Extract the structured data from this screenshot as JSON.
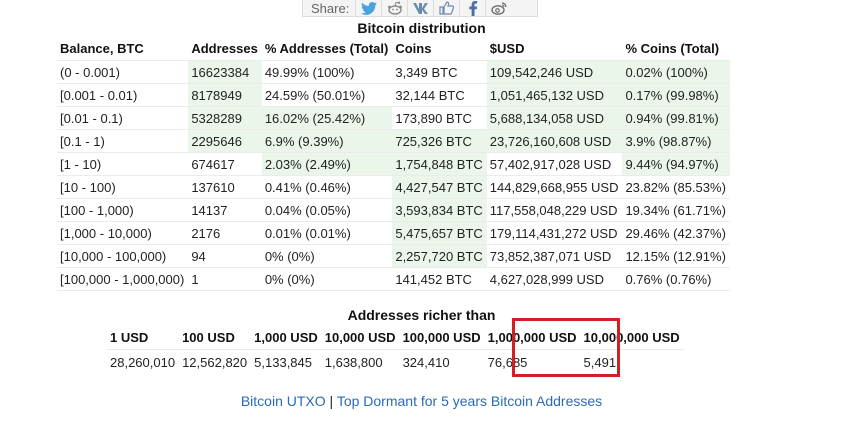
{
  "share": {
    "label": "Share:",
    "icons": [
      "twitter-icon",
      "reddit-icon",
      "vk-icon",
      "like-icon",
      "facebook-icon",
      "weibo-icon"
    ]
  },
  "distribution": {
    "title": "Bitcoin distribution",
    "headers": [
      "Balance, BTC",
      "Addresses",
      "% Addresses (Total)",
      "Coins",
      "$USD",
      "% Coins (Total)"
    ],
    "rows": [
      [
        "(0 - 0.001)",
        "16623384",
        "49.99% (100%)",
        "3,349 BTC",
        "109,542,246 USD",
        "0.02% (100%)"
      ],
      [
        "[0.001 - 0.01)",
        "8178949",
        "24.59% (50.01%)",
        "32,144 BTC",
        "1,051,465,132 USD",
        "0.17% (99.98%)"
      ],
      [
        "[0.01 - 0.1)",
        "5328289",
        "16.02% (25.42%)",
        "173,890 BTC",
        "5,688,134,058 USD",
        "0.94% (99.81%)"
      ],
      [
        "[0.1 - 1)",
        "2295646",
        "6.9% (9.39%)",
        "725,326 BTC",
        "23,726,160,608 USD",
        "3.9% (98.87%)"
      ],
      [
        "[1 - 10)",
        "674617",
        "2.03% (2.49%)",
        "1,754,848 BTC",
        "57,402,917,028 USD",
        "9.44% (94.97%)"
      ],
      [
        "[10 - 100)",
        "137610",
        "0.41% (0.46%)",
        "4,427,547 BTC",
        "144,829,668,955 USD",
        "23.82% (85.53%)"
      ],
      [
        "[100 - 1,000)",
        "14137",
        "0.04% (0.05%)",
        "3,593,834 BTC",
        "117,558,048,229 USD",
        "19.34% (61.71%)"
      ],
      [
        "[1,000 - 10,000)",
        "2176",
        "0.01% (0.01%)",
        "5,475,657 BTC",
        "179,114,431,272 USD",
        "29.46% (42.37%)"
      ],
      [
        "[10,000 - 100,000)",
        "94",
        "0% (0%)",
        "2,257,720 BTC",
        "73,852,387,071 USD",
        "12.15% (12.91%)"
      ],
      [
        "[100,000 - 1,000,000)",
        "1",
        "0% (0%)",
        "141,452 BTC",
        "4,627,028,999 USD",
        "0.76% (0.76%)"
      ]
    ],
    "shaded": [
      [
        false,
        true,
        false,
        false,
        true,
        true
      ],
      [
        false,
        true,
        false,
        false,
        true,
        true
      ],
      [
        false,
        true,
        true,
        false,
        true,
        true
      ],
      [
        false,
        true,
        true,
        true,
        true,
        true
      ],
      [
        false,
        false,
        true,
        true,
        false,
        true
      ],
      [
        false,
        false,
        false,
        true,
        false,
        false
      ],
      [
        false,
        false,
        false,
        true,
        false,
        false
      ],
      [
        false,
        false,
        false,
        true,
        false,
        false
      ],
      [
        false,
        false,
        false,
        true,
        false,
        false
      ],
      [
        false,
        false,
        false,
        false,
        false,
        false
      ]
    ]
  },
  "richer": {
    "title": "Addresses richer than",
    "headers": [
      "1 USD",
      "100 USD",
      "1,000 USD",
      "10,000 USD",
      "100,000 USD",
      "1,000,000 USD",
      "10,000,000 USD"
    ],
    "values": [
      "28,260,010",
      "12,562,820",
      "5,133,845",
      "1,638,800",
      "324,410",
      "76,685",
      "5,491"
    ],
    "highlight_color": "#d21f1f"
  },
  "footer": {
    "link1": "Bitcoin UTXO",
    "separator": " | ",
    "link2": "Top Dormant for 5 years Bitcoin Addresses"
  },
  "colors": {
    "shade": "#e9f6e9",
    "link": "#2a6ab8"
  }
}
